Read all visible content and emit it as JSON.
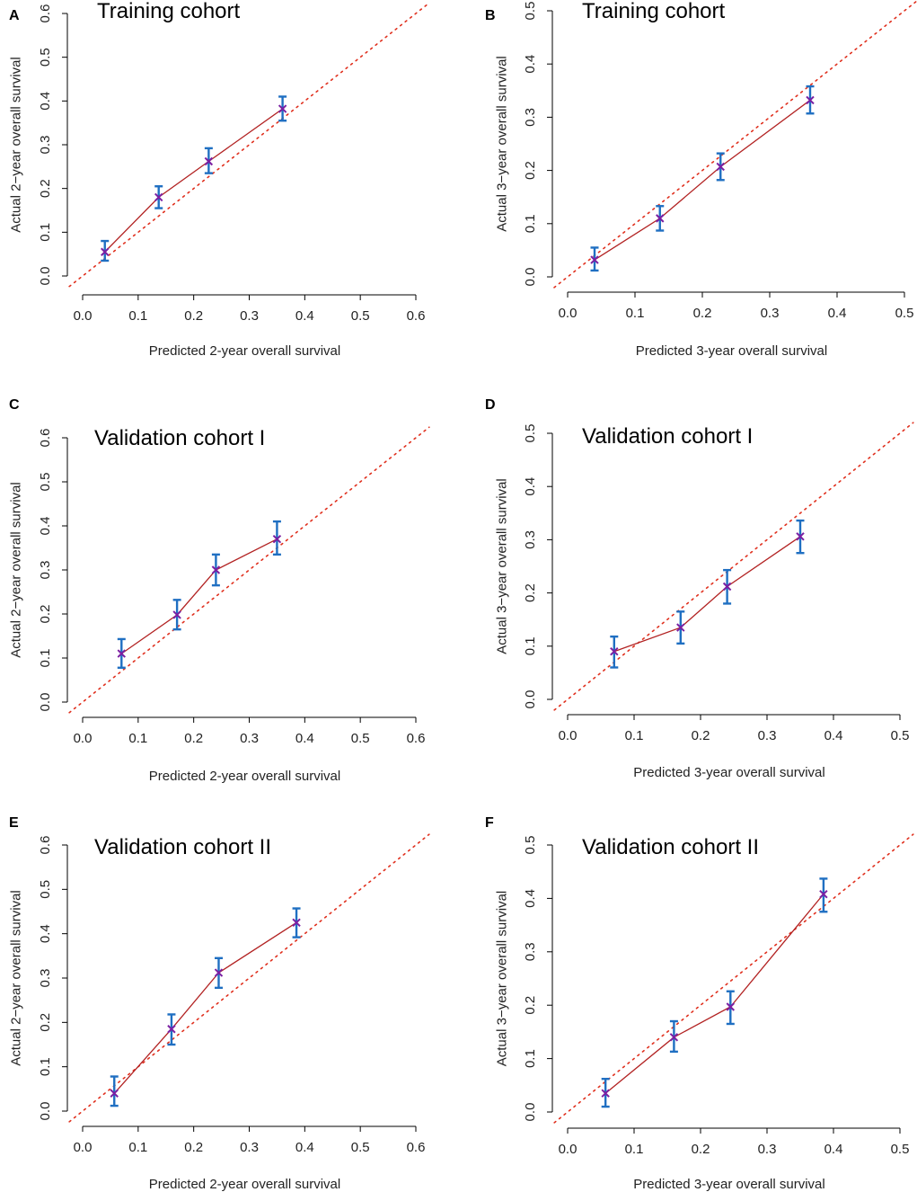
{
  "colors": {
    "axis": "#000000",
    "calibration_line": "#b22222",
    "ideal_line": "#e0301e",
    "error_bar": "#1f6fc2",
    "point_marker": "#7a1fa2"
  },
  "chart_data": [
    {
      "type": "scatter",
      "panel_label": "A",
      "title": "Training cohort",
      "xlabel": "Predicted 2-year overall survival",
      "ylabel": "Actual 2−year overall survival",
      "xlim": [
        0,
        0.6
      ],
      "ylim": [
        0,
        0.6
      ],
      "xticks": [
        "0.0",
        "0.1",
        "0.2",
        "0.3",
        "0.4",
        "0.5",
        "0.6"
      ],
      "yticks": [
        "0.0",
        "0.1",
        "0.2",
        "0.3",
        "0.4",
        "0.5",
        "0.6"
      ],
      "reference_line": "ideal diagonal y = x (dotted)",
      "points": [
        {
          "x": 0.04,
          "y": 0.055,
          "lo": 0.035,
          "hi": 0.08
        },
        {
          "x": 0.137,
          "y": 0.18,
          "lo": 0.155,
          "hi": 0.205
        },
        {
          "x": 0.227,
          "y": 0.262,
          "lo": 0.235,
          "hi": 0.292
        },
        {
          "x": 0.36,
          "y": 0.382,
          "lo": 0.355,
          "hi": 0.41
        }
      ]
    },
    {
      "type": "scatter",
      "panel_label": "B",
      "title": "Training cohort",
      "xlabel": "Predicted 3-year overall survival",
      "ylabel": "Actual 3−year overall survival",
      "xlim": [
        0,
        0.5
      ],
      "ylim": [
        0,
        0.5
      ],
      "xticks": [
        "0.0",
        "0.1",
        "0.2",
        "0.3",
        "0.4",
        "0.5"
      ],
      "yticks": [
        "0.0",
        "0.1",
        "0.2",
        "0.3",
        "0.4",
        "0.5"
      ],
      "reference_line": "ideal diagonal y = x (dotted)",
      "points": [
        {
          "x": 0.04,
          "y": 0.032,
          "lo": 0.012,
          "hi": 0.055
        },
        {
          "x": 0.137,
          "y": 0.11,
          "lo": 0.087,
          "hi": 0.133
        },
        {
          "x": 0.227,
          "y": 0.207,
          "lo": 0.182,
          "hi": 0.232
        },
        {
          "x": 0.36,
          "y": 0.332,
          "lo": 0.307,
          "hi": 0.358
        }
      ]
    },
    {
      "type": "scatter",
      "panel_label": "C",
      "title": "Validation cohort I",
      "xlabel": "Predicted 2-year overall survival",
      "ylabel": "Actual 2−year overall survival",
      "xlim": [
        0,
        0.6
      ],
      "ylim": [
        0,
        0.6
      ],
      "xticks": [
        "0.0",
        "0.1",
        "0.2",
        "0.3",
        "0.4",
        "0.5",
        "0.6"
      ],
      "yticks": [
        "0.0",
        "0.1",
        "0.2",
        "0.3",
        "0.4",
        "0.5",
        "0.6"
      ],
      "reference_line": "ideal diagonal y = x (dotted)",
      "points": [
        {
          "x": 0.07,
          "y": 0.11,
          "lo": 0.078,
          "hi": 0.143
        },
        {
          "x": 0.17,
          "y": 0.198,
          "lo": 0.165,
          "hi": 0.232
        },
        {
          "x": 0.24,
          "y": 0.3,
          "lo": 0.265,
          "hi": 0.335
        },
        {
          "x": 0.35,
          "y": 0.37,
          "lo": 0.335,
          "hi": 0.41
        }
      ]
    },
    {
      "type": "scatter",
      "panel_label": "D",
      "title": "Validation cohort I",
      "xlabel": "Predicted 3-year overall survival",
      "ylabel": "Actual 3−year overall survival",
      "xlim": [
        0,
        0.5
      ],
      "ylim": [
        0,
        0.5
      ],
      "xticks": [
        "0.0",
        "0.1",
        "0.2",
        "0.3",
        "0.4",
        "0.5"
      ],
      "yticks": [
        "0.0",
        "0.1",
        "0.2",
        "0.3",
        "0.4",
        "0.5"
      ],
      "reference_line": "ideal diagonal y = x (dotted)",
      "points": [
        {
          "x": 0.07,
          "y": 0.09,
          "lo": 0.06,
          "hi": 0.118
        },
        {
          "x": 0.17,
          "y": 0.135,
          "lo": 0.105,
          "hi": 0.165
        },
        {
          "x": 0.24,
          "y": 0.212,
          "lo": 0.18,
          "hi": 0.243
        },
        {
          "x": 0.35,
          "y": 0.306,
          "lo": 0.275,
          "hi": 0.336
        }
      ]
    },
    {
      "type": "scatter",
      "panel_label": "E",
      "title": "Validation cohort II",
      "xlabel": "Predicted 2-year overall survival",
      "ylabel": "Actual 2−year overall survival",
      "xlim": [
        0,
        0.6
      ],
      "ylim": [
        0,
        0.6
      ],
      "xticks": [
        "0.0",
        "0.1",
        "0.2",
        "0.3",
        "0.4",
        "0.5",
        "0.6"
      ],
      "yticks": [
        "0.0",
        "0.1",
        "0.2",
        "0.3",
        "0.4",
        "0.5",
        "0.6"
      ],
      "reference_line": "ideal diagonal y = x (dotted)",
      "points": [
        {
          "x": 0.057,
          "y": 0.04,
          "lo": 0.012,
          "hi": 0.078
        },
        {
          "x": 0.16,
          "y": 0.185,
          "lo": 0.15,
          "hi": 0.218
        },
        {
          "x": 0.245,
          "y": 0.312,
          "lo": 0.278,
          "hi": 0.345
        },
        {
          "x": 0.385,
          "y": 0.425,
          "lo": 0.392,
          "hi": 0.457
        }
      ]
    },
    {
      "type": "scatter",
      "panel_label": "F",
      "title": "Validation cohort II",
      "xlabel": "Predicted 3-year overall survival",
      "ylabel": "Actual 3−year overall survival",
      "xlim": [
        0,
        0.5
      ],
      "ylim": [
        0,
        0.5
      ],
      "xticks": [
        "0.0",
        "0.1",
        "0.2",
        "0.3",
        "0.4",
        "0.5"
      ],
      "yticks": [
        "0.0",
        "0.1",
        "0.2",
        "0.3",
        "0.4",
        "0.5"
      ],
      "reference_line": "ideal diagonal y = x (dotted)",
      "points": [
        {
          "x": 0.057,
          "y": 0.035,
          "lo": 0.01,
          "hi": 0.062
        },
        {
          "x": 0.16,
          "y": 0.14,
          "lo": 0.113,
          "hi": 0.17
        },
        {
          "x": 0.245,
          "y": 0.197,
          "lo": 0.165,
          "hi": 0.226
        },
        {
          "x": 0.385,
          "y": 0.408,
          "lo": 0.375,
          "hi": 0.437
        }
      ]
    }
  ]
}
